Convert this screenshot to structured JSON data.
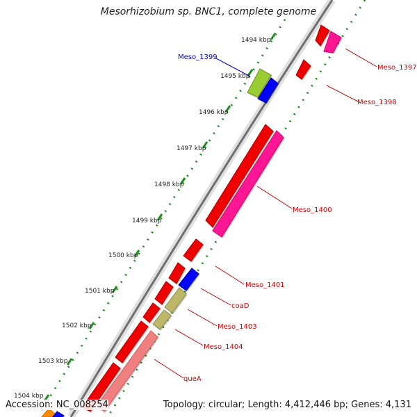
{
  "title": "Mesorhizobium sp. BNC1, complete genome",
  "footer": {
    "accession": "Accession: NC_008254",
    "summary": "Topology: circular; Length: 4,412,446 bp; Genes: 4,131"
  },
  "ticks": [
    "1494 kbp",
    "1495 kbp",
    "1496 kbp",
    "1497 kbp",
    "1498 kbp",
    "1499 kbp",
    "1500 kbp",
    "1501 kbp",
    "1502 kbp",
    "1503 kbp",
    "1504 kbp"
  ],
  "genes": [
    {
      "name": "Meso_1397",
      "strand": "+",
      "start_kbp": 1494.5,
      "end_kbp": 1494.7,
      "color": "#ff1493"
    },
    {
      "name": "Meso_1398",
      "strand": "+",
      "start_kbp": 1495.0,
      "end_kbp": 1495.25,
      "color": "#ff0000"
    },
    {
      "name": "Meso_1399",
      "strand": "-",
      "start_kbp": 1495.1,
      "end_kbp": 1495.35,
      "color": "#0000ff"
    },
    {
      "name": "Meso_1400",
      "strand": "+",
      "start_kbp": 1496.5,
      "end_kbp": 1499.0,
      "color": "#ff1493"
    },
    {
      "name": "Meso_1401",
      "strand": "-",
      "start_kbp": 1500.0,
      "end_kbp": 1500.35,
      "color": "#ff0000"
    },
    {
      "name": "coaD",
      "strand": "+",
      "start_kbp": 1500.85,
      "end_kbp": 1501.1,
      "color": "#0000ff"
    },
    {
      "name": "Meso_1403",
      "strand": "+",
      "start_kbp": 1501.15,
      "end_kbp": 1501.55,
      "color": "#bdb76b"
    },
    {
      "name": "Meso_1404",
      "strand": "+",
      "start_kbp": 1501.65,
      "end_kbp": 1501.95,
      "color": "#bdb76b"
    },
    {
      "name": "queA",
      "strand": "+",
      "start_kbp": 1502.1,
      "end_kbp": 1504.2,
      "color": "#f08080"
    }
  ],
  "colors": {
    "backbone": "#777777",
    "tick": "#228b22",
    "label": "#cc0000",
    "highlight_label": "#0000cc"
  }
}
